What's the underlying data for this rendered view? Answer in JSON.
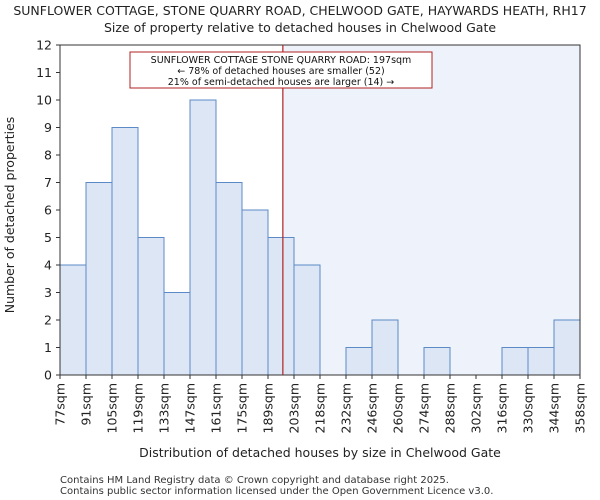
{
  "chart_data": {
    "type": "histogram",
    "title_lines": [
      "SUNFLOWER COTTAGE, STONE QUARRY ROAD, CHELWOOD GATE, HAYWARDS HEATH, RH17",
      "Size of property relative to detached houses in Chelwood Gate"
    ],
    "xlabel": "Distribution of detached houses by size in Chelwood Gate",
    "ylabel": "Number of detached properties",
    "categories": [
      "77sqm",
      "91sqm",
      "105sqm",
      "119sqm",
      "133sqm",
      "147sqm",
      "161sqm",
      "175sqm",
      "189sqm",
      "203sqm",
      "218sqm",
      "232sqm",
      "246sqm",
      "260sqm",
      "274sqm",
      "288sqm",
      "302sqm",
      "316sqm",
      "330sqm",
      "344sqm",
      "358sqm"
    ],
    "values": [
      4,
      7,
      9,
      5,
      3,
      10,
      7,
      6,
      5,
      4,
      0,
      1,
      2,
      0,
      1,
      0,
      0,
      1,
      1,
      2
    ],
    "ylim": [
      0,
      12
    ],
    "yticks": [
      0,
      1,
      2,
      3,
      4,
      5,
      6,
      7,
      8,
      9,
      10,
      11,
      12
    ],
    "subject_value_sqm": 197,
    "bar_color": "#dce6f5",
    "bar_edge_color": "#5b8ac6",
    "subject_line_color": "#b22222",
    "right_shade_color": "#eef2fa",
    "annotation": {
      "lines": [
        "SUNFLOWER COTTAGE STONE QUARRY ROAD: 197sqm",
        "← 78% of detached houses are smaller (52)",
        "21% of semi-detached houses are larger (14) →"
      ]
    }
  },
  "footer": {
    "line1": "Contains HM Land Registry data © Crown copyright and database right 2025.",
    "line2": "Contains public sector information licensed under the Open Government Licence v3.0."
  }
}
